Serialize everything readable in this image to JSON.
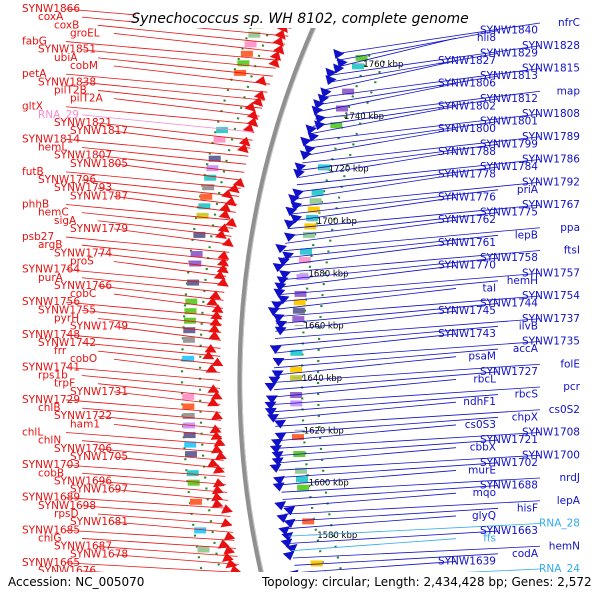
{
  "map": {
    "title": "Synechococcus sp. WH 8102, complete genome",
    "accession": "Accession: NC_005070",
    "summary": "Topology: circular; Length: 2,434,428 bp; Genes: 2,572"
  },
  "colors": {
    "forward": "#e81010",
    "reverse": "#1010c8",
    "rna": "#ff88cc",
    "rna_reverse": "#33aaee",
    "backbone": "#909090",
    "dots": "#2a8a2a"
  },
  "scale_labels": [
    "1760 kbp",
    "1740 kbp",
    "1720 kbp",
    "1700 kbp",
    "1680 kbp",
    "1660 kbp",
    "1640 kbp",
    "1620 kbp",
    "1600 kbp",
    "1580 kbp"
  ],
  "left_labels": [
    "SYNW1866",
    "coxA",
    "coxB",
    "groEL",
    "fabG",
    "SYNW1851",
    "ubiA",
    "cobM",
    "petA",
    "SYNW1838",
    "pilT2B",
    "pilT2A",
    "gltX",
    "RNA_29",
    "SYNW1821",
    "SYNW1817",
    "SYNW1814",
    "hemL",
    "SYNW1807",
    "SYNW1805",
    "futB",
    "SYNW1796",
    "SYNW1793",
    "SYNW1787",
    "phhB",
    "hemC",
    "sigA",
    "SYNW1779",
    "psb27",
    "argB",
    "SYNW1774",
    "proS",
    "SYNW1764",
    "purA",
    "SYNW1766",
    "cobC",
    "SYNW1756",
    "SYNW1755",
    "pyrH",
    "SYNW1749",
    "SYNW1748",
    "SYNW1742",
    "frr",
    "cobO",
    "SYNW1741",
    "rps1b",
    "trpF",
    "SYNW1731",
    "SYNW1729",
    "chlB",
    "SYNW1722",
    "ham1",
    "chlL",
    "chlN",
    "SYNW1706",
    "SYNW1705",
    "SYNW1703",
    "cobB",
    "SYNW1696",
    "SYNW1697",
    "SYNW1689",
    "SYNW1698",
    "rpsD",
    "SYNW1681",
    "SYNW1685",
    "chlG",
    "SYNW1687",
    "SYNW1678",
    "SYNW1665",
    "SYNW1676"
  ],
  "right_labels": [
    "nfrC",
    "SYNW1840",
    "hli8",
    "SYNW1828",
    "SYNW1829",
    "SYNW1827",
    "SYNW1815",
    "SYNW1813",
    "SYNW1806",
    "map",
    "SYNW1812",
    "SYNW1802",
    "SYNW1808",
    "SYNW1801",
    "SYNW1800",
    "SYNW1789",
    "SYNW1799",
    "SYNW1788",
    "SYNW1786",
    "SYNW1784",
    "SYNW1778",
    "SYNW1792",
    "priA",
    "SYNW1776",
    "SYNW1767",
    "SYNW1775",
    "SYNW1762",
    "ppa",
    "lepB",
    "SYNW1761",
    "ftsI",
    "SYNW1758",
    "SYNW1770",
    "SYNW1757",
    "hemH",
    "tal",
    "SYNW1754",
    "SYNW1744",
    "SYNW1745",
    "SYNW1737",
    "ilvB",
    "SYNW1743",
    "SYNW1735",
    "accA",
    "psaM",
    "folE",
    "SYNW1727",
    "rbcL",
    "pcr",
    "rbcS",
    "ndhF1",
    "cs0S2",
    "chpX",
    "cs0S3",
    "SYNW1708",
    "SYNW1721",
    "cbbX",
    "SYNW1700",
    "SYNW1702",
    "murE",
    "nrdJ",
    "SYNW1688",
    "mqo",
    "lepA",
    "hisF",
    "glyQ",
    "RNA_28",
    "SYNW1663",
    "ffs",
    "hemN",
    "codA",
    "SYNW1639",
    "RNA_24"
  ]
}
